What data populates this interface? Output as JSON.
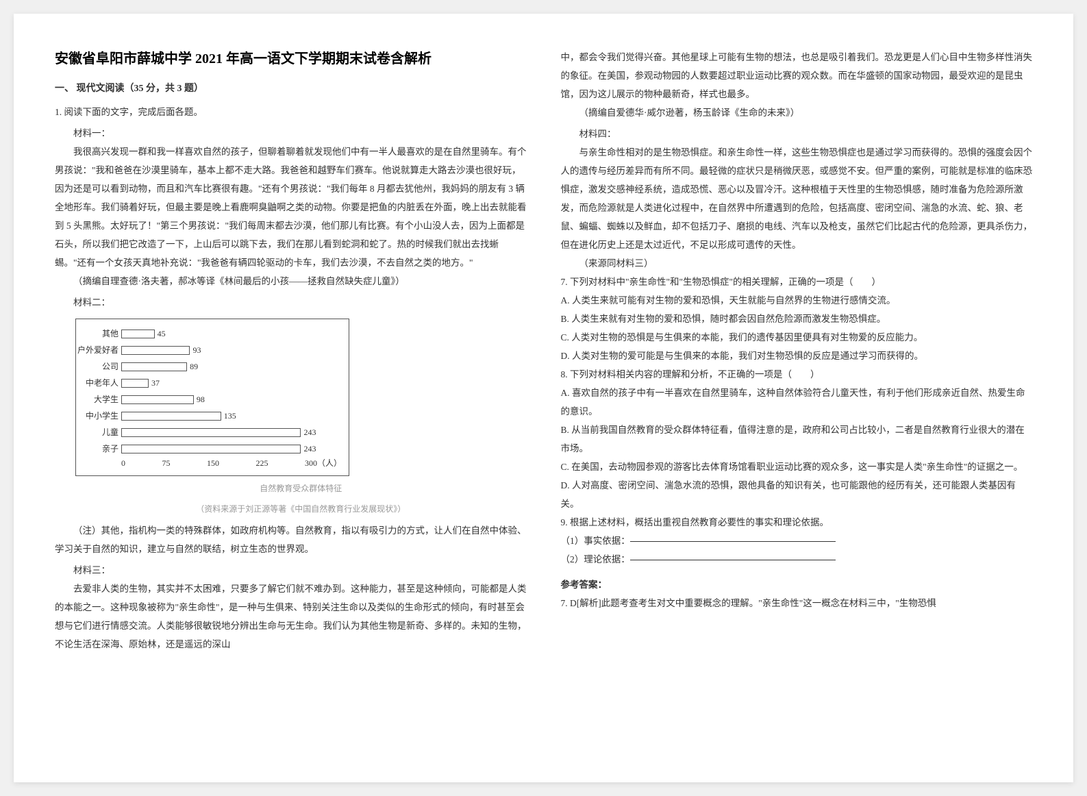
{
  "title": "安徽省阜阳市薛城中学 2021 年高一语文下学期期末试卷含解析",
  "section1": "一、 现代文阅读（35 分，共 3 题）",
  "q1_head": "1. 阅读下面的文字，完成后面各题。",
  "mat1_label": "材料一：",
  "mat1_p1": "我很高兴发现一群和我一样喜欢自然的孩子，但聊着聊着就发现他们中有一半人最喜欢的是在自然里骑车。有个男孩说：\"我和爸爸在沙漠里骑车，基本上都不走大路。我爸爸和越野车们赛车。他说就算走大路去沙漠也很好玩，因为还是可以看到动物，而且和汽车比赛很有趣。\"还有个男孩说：\"我们每年 8 月都去犹他州，我妈妈的朋友有 3 辆全地形车。我们骑着好玩，但最主要是晚上看鹿啊臭鼬啊之类的动物。你要是把鱼的内脏丢在外面，晚上出去就能看到 5 头黑熊。太好玩了！\"第三个男孩说：\"我们每周末都去沙漠，他们那儿有比赛。有个小山没人去，因为上面都是石头，所以我们把它改造了一下，上山后可以跳下去，我们在那儿看到蛇洞和蛇了。热的时候我们就出去找蜥蜴。\"还有一个女孩天真地补充说：\"我爸爸有辆四轮驱动的卡车，我们去沙漠，不去自然之类的地方。\"",
  "mat1_src": "（摘编自理查德·洛夫著，郝冰等译《林间最后的小孩——拯救自然缺失症儿童》）",
  "mat2_label": "材料二：",
  "chart": {
    "categories": [
      "其他",
      "户外爱好者",
      "公司",
      "中老年人",
      "大学生",
      "中小学生",
      "儿童",
      "亲子"
    ],
    "values": [
      45,
      93,
      89,
      37,
      98,
      135,
      243,
      243
    ],
    "xticks": [
      "0",
      "75",
      "150",
      "225",
      "300（人）"
    ],
    "max": 300,
    "bar_fill": "#ffffff",
    "bar_border": "#555555",
    "caption1": "自然教育受众群体特征",
    "caption2": "（资料来源于刘正源等著《中国自然教育行业发展现状》）"
  },
  "mat2_note": "（注）其他，指机构一类的特殊群体，如政府机构等。自然教育，指以有吸引力的方式，让人们在自然中体验、学习关于自然的知识，建立与自然的联结，树立生态的世界观。",
  "mat3_label": "材料三：",
  "mat3_p1": "去爱非人类的生物，其实并不太困难，只要多了解它们就不难办到。这种能力，甚至是这种倾向，可能都是人类的本能之一。这种现象被称为\"亲生命性\"，是一种与生俱来、特别关注生命以及类似的生命形式的倾向，有时甚至会想与它们进行情感交流。人类能够很敏锐地分辨出生命与无生命。我们认为其他生物是新奇、多样的。未知的生物，不论生活在深海、原始林，还是遥远的深山",
  "mat3_p2": "中，都会令我们觉得兴奋。其他星球上可能有生物的想法，也总是吸引着我们。恐龙更是人们心目中生物多样性消失的象征。在美国，参观动物园的人数要超过职业运动比赛的观众数。而在华盛顿的国家动物园，最受欢迎的是昆虫馆，因为这儿展示的物种最新奇，样式也最多。",
  "mat3_src": "（摘编自爱德华·威尔逊著，杨玉龄译《生命的未来》）",
  "mat4_label": "材料四：",
  "mat4_p1": "与亲生命性相对的是生物恐惧症。和亲生命性一样，这些生物恐惧症也是通过学习而获得的。恐惧的强度会因个人的遗传与经历差异而有所不同。最轻微的症状只是稍微厌恶，或感觉不安。但严重的案例，可能就是标准的临床恐惧症，激发交感神经系统，造成恐慌、恶心以及冒冷汗。这种根植于天性里的生物恐惧感，随时准备为危险源所激发，而危险源就是人类进化过程中，在自然界中所遭遇到的危险，包括高度、密闭空间、湍急的水流、蛇、狼、老鼠、蝙蝠、蜘蛛以及鲜血，却不包括刀子、磨损的电线、汽车以及枪支，虽然它们比起古代的危险源，更具杀伤力，但在进化历史上还是太过近代，不足以形成可遗传的天性。",
  "mat4_src": "（来源同材料三）",
  "q7": "7. 下列对材料中\"亲生命性\"和\"生物恐惧症\"的相关理解，正确的一项是（　　）",
  "q7a": "A. 人类生来就可能有对生物的爱和恐惧，天生就能与自然界的生物进行感情交流。",
  "q7b": "B. 人类生来就有对生物的爱和恐惧，随时都会因自然危险源而激发生物恐惧症。",
  "q7c": "C. 人类对生物的恐惧是与生俱来的本能，我们的遗传基因里便具有对生物爱的反应能力。",
  "q7d": "D. 人类对生物的爱可能是与生俱来的本能，我们对生物恐惧的反应是通过学习而获得的。",
  "q8": "8. 下列对材料相关内容的理解和分析，不正确的一项是（　　）",
  "q8a": "A. 喜欢自然的孩子中有一半喜欢在自然里骑车，这种自然体验符合儿童天性，有利于他们形成亲近自然、热爱生命的意识。",
  "q8b": "B. 从当前我国自然教育的受众群体特征看，值得注意的是，政府和公司占比较小，二者是自然教育行业很大的潜在市场。",
  "q8c": "C. 在美国，去动物园参观的游客比去体育场馆看职业运动比赛的观众多，这一事实是人类\"亲生命性\"的证据之一。",
  "q8d": "D. 人对高度、密闭空间、湍急水流的恐惧，跟他具备的知识有关，也可能跟他的经历有关，还可能跟人类基因有关。",
  "q9": "9. 根据上述材料，概括出重视自然教育必要性的事实和理论依据。",
  "q9_1": "（1）事实依据：",
  "q9_2": "（2）理论依据：",
  "answer_head": "参考答案：",
  "answer_p1": "7. D[解析]此题考查考生对文中重要概念的理解。\"亲生命性\"这一概念在材料三中，\"生物恐惧"
}
